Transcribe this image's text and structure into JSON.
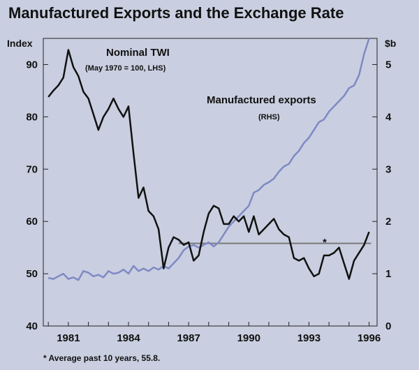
{
  "chart_data": {
    "type": "line",
    "title": "Manufactured Exports and the Exchange Rate",
    "left_axis": {
      "unit_label": "Index",
      "ylim": [
        40,
        95
      ],
      "ticks": [
        40,
        50,
        60,
        70,
        80,
        90
      ]
    },
    "right_axis": {
      "unit_label": "$b",
      "ylim": [
        0,
        5.5
      ],
      "ticks": [
        0,
        1,
        2,
        3,
        4,
        5
      ]
    },
    "x_axis": {
      "xlim": [
        1979.75,
        1996.4
      ],
      "ticks": [
        1981,
        1984,
        1987,
        1990,
        1993,
        1996
      ],
      "tick_labels": [
        "1981",
        "1984",
        "1987",
        "1990",
        "1993",
        "1996"
      ]
    },
    "annotations": {
      "twi_label": "Nominal TWI",
      "twi_sublabel": "(May 1970 = 100, LHS)",
      "exports_label": "Manufactured exports",
      "exports_sublabel": "(RHS)",
      "asterisk": "*",
      "footnote": "* Average past 10 years, 55.8."
    },
    "average_line": {
      "value": 55.8,
      "from": 1986.5,
      "to": 1996.1,
      "axis": "left"
    },
    "colors": {
      "twi": "#111111",
      "exports": "#7f89c4",
      "average": "#7a7a7a",
      "background": "#c9cfe0"
    },
    "series": [
      {
        "name": "Nominal TWI",
        "axis": "left",
        "x": [
          1980.0,
          1980.25,
          1980.5,
          1980.75,
          1981.0,
          1981.25,
          1981.5,
          1981.75,
          1982.0,
          1982.25,
          1982.5,
          1982.75,
          1983.0,
          1983.25,
          1983.5,
          1983.75,
          1984.0,
          1984.25,
          1984.5,
          1984.75,
          1985.0,
          1985.25,
          1985.5,
          1985.75,
          1986.0,
          1986.25,
          1986.5,
          1986.75,
          1987.0,
          1987.25,
          1987.5,
          1987.75,
          1988.0,
          1988.25,
          1988.5,
          1988.75,
          1989.0,
          1989.25,
          1989.5,
          1989.75,
          1990.0,
          1990.25,
          1990.5,
          1990.75,
          1991.0,
          1991.25,
          1991.5,
          1991.75,
          1992.0,
          1992.25,
          1992.5,
          1992.75,
          1993.0,
          1993.25,
          1993.5,
          1993.75,
          1994.0,
          1994.25,
          1994.5,
          1994.75,
          1995.0,
          1995.25,
          1995.5,
          1995.75,
          1996.0
        ],
        "values": [
          83.8,
          85.0,
          86.0,
          87.5,
          92.8,
          89.5,
          87.8,
          84.8,
          83.5,
          80.5,
          77.5,
          80.0,
          81.5,
          83.5,
          81.5,
          80.0,
          82.0,
          73.0,
          64.5,
          66.5,
          62.0,
          61.0,
          58.5,
          51.0,
          55.0,
          57.0,
          56.5,
          55.5,
          56.0,
          52.5,
          53.5,
          58.0,
          61.5,
          63.0,
          62.5,
          59.5,
          59.5,
          61.0,
          60.0,
          61.0,
          58.0,
          61.0,
          57.5,
          58.5,
          59.5,
          60.5,
          58.5,
          57.5,
          57.0,
          53.0,
          52.5,
          53.0,
          51.0,
          49.5,
          50.0,
          53.5,
          53.5,
          54.0,
          55.0,
          52.0,
          49.0,
          52.5,
          54.0,
          55.5,
          58.0
        ]
      },
      {
        "name": "Manufactured exports",
        "axis": "right",
        "x": [
          1980.0,
          1980.25,
          1980.5,
          1980.75,
          1981.0,
          1981.25,
          1981.5,
          1981.75,
          1982.0,
          1982.25,
          1982.5,
          1982.75,
          1983.0,
          1983.25,
          1983.5,
          1983.75,
          1984.0,
          1984.25,
          1984.5,
          1984.75,
          1985.0,
          1985.25,
          1985.5,
          1985.75,
          1986.0,
          1986.25,
          1986.5,
          1986.75,
          1987.0,
          1987.25,
          1987.5,
          1987.75,
          1988.0,
          1988.25,
          1988.5,
          1988.75,
          1989.0,
          1989.25,
          1989.5,
          1989.75,
          1990.0,
          1990.25,
          1990.5,
          1990.75,
          1991.0,
          1991.25,
          1991.5,
          1991.75,
          1992.0,
          1992.25,
          1992.5,
          1992.75,
          1993.0,
          1993.25,
          1993.5,
          1993.75,
          1994.0,
          1994.25,
          1994.5,
          1994.75,
          1995.0,
          1995.25,
          1995.5,
          1995.75,
          1996.0
        ],
        "values": [
          0.92,
          0.9,
          0.95,
          1.0,
          0.9,
          0.93,
          0.88,
          1.05,
          1.02,
          0.95,
          0.98,
          0.93,
          1.05,
          1.0,
          1.02,
          1.08,
          1.0,
          1.15,
          1.05,
          1.1,
          1.05,
          1.12,
          1.08,
          1.15,
          1.1,
          1.2,
          1.3,
          1.45,
          1.52,
          1.55,
          1.5,
          1.55,
          1.6,
          1.52,
          1.6,
          1.75,
          1.9,
          2.0,
          2.1,
          2.2,
          2.3,
          2.55,
          2.6,
          2.7,
          2.75,
          2.82,
          2.95,
          3.05,
          3.1,
          3.25,
          3.35,
          3.5,
          3.6,
          3.75,
          3.9,
          3.95,
          4.1,
          4.2,
          4.3,
          4.4,
          4.55,
          4.6,
          4.8,
          5.2,
          5.5
        ]
      }
    ]
  }
}
